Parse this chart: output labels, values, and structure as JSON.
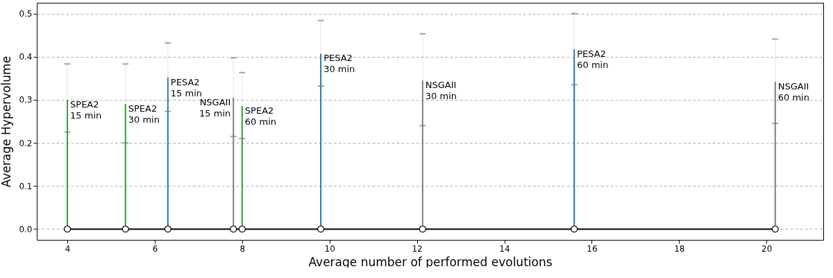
{
  "chart_data": {
    "type": "bar",
    "xlabel": "Average number of performed evolutions",
    "ylabel": "Average Hypervolume",
    "xlim": [
      3.3,
      21.3
    ],
    "xticks": [
      4,
      6,
      8,
      10,
      12,
      14,
      16,
      18,
      20
    ],
    "ylim": [
      -0.025,
      0.525
    ],
    "yticks": [
      {
        "value": 0,
        "label": "0.0"
      },
      0.1,
      0.2,
      0.3,
      0.4,
      0.5
    ],
    "grid": "y",
    "series": [
      {
        "color": "#2ca02c",
        "x": [
          4.0,
          5.33,
          8.0
        ],
        "values": [
          0.3,
          0.29,
          0.285
        ],
        "errors": [
          [
            0.225,
            0.383
          ],
          [
            0.2,
            0.383
          ],
          [
            0.21,
            0.363
          ]
        ]
      },
      {
        "color": "#1f77b4",
        "x": [
          6.3,
          9.8,
          15.6
        ],
        "values": [
          0.352,
          0.407,
          0.417
        ],
        "errors": [
          [
            0.273,
            0.432
          ],
          [
            0.332,
            0.484
          ],
          [
            0.335,
            0.5
          ]
        ]
      },
      {
        "color": "#7f7f7f",
        "x": [
          7.8,
          12.13,
          20.2
        ],
        "values": [
          0.305,
          0.345,
          0.342
        ],
        "errors": [
          [
            0.215,
            0.397
          ],
          [
            0.24,
            0.453
          ],
          [
            0.245,
            0.441
          ]
        ]
      },
      {
        "type": "line",
        "color": "#000000",
        "marker": "circle",
        "x": [
          4.0,
          5.33,
          6.3,
          7.8,
          8.0,
          9.8,
          12.13,
          15.6,
          20.2
        ],
        "values": [
          0,
          0,
          0,
          0,
          0,
          0,
          0,
          0,
          0
        ]
      }
    ],
    "annotations": [
      {
        "text": "SPEA2\n15 min",
        "x": 4.0,
        "y": 0.3
      },
      {
        "text": "SPEA2\n30 min",
        "x": 5.33,
        "y": 0.29
      },
      {
        "text": "PESA2\n15 min",
        "x": 6.3,
        "y": 0.352
      },
      {
        "text": "NSGAII\n15 min",
        "x": 7.8,
        "y": 0.305
      },
      {
        "text": "SPEA2\n60 min",
        "x": 8.0,
        "y": 0.285
      },
      {
        "text": "PESA2\n30 min",
        "x": 9.8,
        "y": 0.407
      },
      {
        "text": "NSGAII\n30 min",
        "x": 12.13,
        "y": 0.345
      },
      {
        "text": "PESA2\n60 min",
        "x": 15.6,
        "y": 0.417
      },
      {
        "text": "NSGAII\n60 min",
        "x": 20.2,
        "y": 0.342
      }
    ]
  }
}
